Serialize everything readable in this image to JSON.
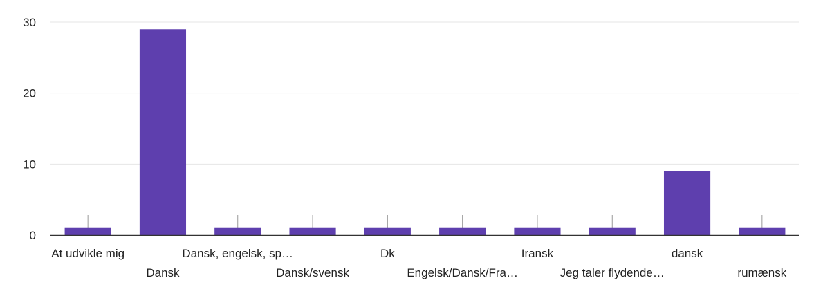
{
  "chart_data": {
    "type": "bar",
    "title": "",
    "xlabel": "",
    "ylabel": "",
    "ylim": [
      0,
      30
    ],
    "yticks": [
      0,
      10,
      20,
      30
    ],
    "grid": true,
    "categories": [
      "At udvikle mig",
      "Dansk",
      "Dansk, engelsk, sp…",
      "Dansk/svensk",
      "Dk",
      "Engelsk/Dansk/Fra…",
      "Iransk",
      "Jeg taler flydende…",
      "dansk",
      "rumænsk"
    ],
    "values": [
      1,
      29,
      1,
      1,
      1,
      1,
      1,
      1,
      9,
      1
    ],
    "colors": {
      "bar": "#5e3fae",
      "grid": "#e6e6e6",
      "axis": "#333333",
      "tick": "#999999",
      "text": "#222222"
    }
  }
}
